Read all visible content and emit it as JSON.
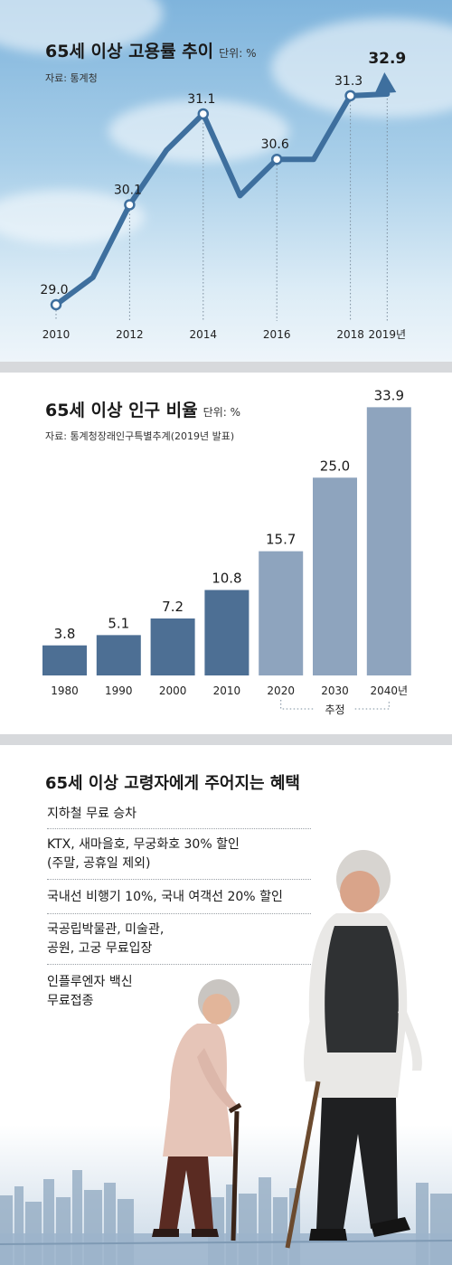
{
  "employment": {
    "title": "65세 이상 고용률 추이",
    "unit": "단위: %",
    "source": "자료: 통계청",
    "chart_data": {
      "type": "line",
      "title": "65세 이상 고용률 추이",
      "x_ticks": [
        "2010",
        "2012",
        "2014",
        "2016",
        "2018",
        "2019년"
      ],
      "x": [
        2010,
        2011,
        2012,
        2013,
        2014,
        2015,
        2016,
        2017,
        2018,
        2019
      ],
      "values": [
        29.0,
        29.3,
        30.1,
        30.7,
        31.1,
        30.2,
        30.6,
        30.6,
        31.3,
        32.9
      ],
      "labeled_points": [
        {
          "x": 2010,
          "label": "29.0"
        },
        {
          "x": 2012,
          "label": "30.1"
        },
        {
          "x": 2014,
          "label": "31.1"
        },
        {
          "x": 2016,
          "label": "30.6"
        },
        {
          "x": 2018,
          "label": "31.3"
        },
        {
          "x": 2019,
          "label": "32.9"
        }
      ],
      "color": "#3e6f9e",
      "grid": false
    }
  },
  "population": {
    "title": "65세 이상 인구 비율",
    "unit": "단위: %",
    "source": "자료: 통계청장래인구특별추계(2019년 발표)",
    "projection_label": "추정",
    "chart_data": {
      "type": "bar",
      "title": "65세 이상 인구 비율",
      "categories": [
        "1980",
        "1990",
        "2000",
        "2010",
        "2020",
        "2030",
        "2040년"
      ],
      "values": [
        3.8,
        5.1,
        7.2,
        10.8,
        15.7,
        25.0,
        33.9
      ],
      "labels": [
        "3.8",
        "5.1",
        "7.2",
        "10.8",
        "15.7",
        "25.0",
        "33.9"
      ],
      "colors": [
        "#4d6f94",
        "#4d6f94",
        "#4d6f94",
        "#4d6f94",
        "#8ea4be",
        "#8ea4be",
        "#8ea4be"
      ],
      "projected_from": "2020",
      "grid": false
    }
  },
  "benefits": {
    "title": "65세 이상 고령자에게 주어지는 혜택",
    "items": [
      [
        "지하철 무료 승차"
      ],
      [
        "KTX, 새마을호, 무궁화호 30% 할인",
        "(주말, 공휴일 제외)"
      ],
      [
        "국내선 비행기 10%, 국내 여객선 20% 할인"
      ],
      [
        "국공립박물관, 미술관,",
        "공원, 고궁 무료입장"
      ],
      [
        "인플루엔자 백신",
        "무료접종"
      ]
    ]
  }
}
